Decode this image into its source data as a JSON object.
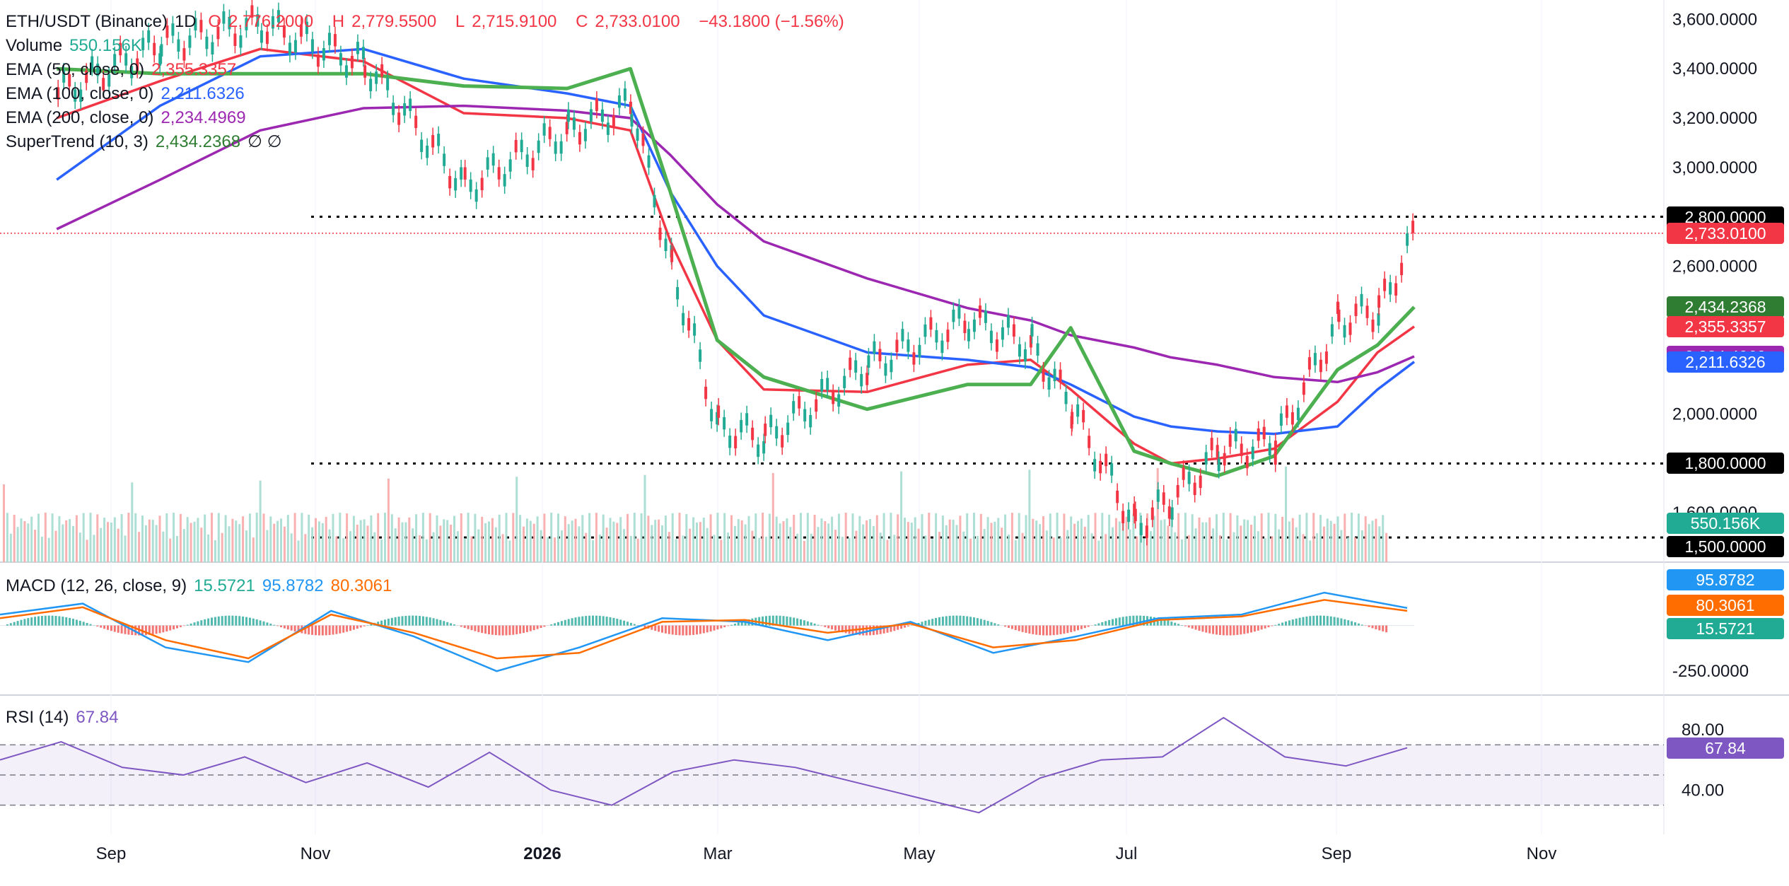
{
  "symbol": {
    "name": "ETH/USDT (Binance)",
    "interval": "1D",
    "o_label": "O",
    "o": "2,776.2000",
    "h_label": "H",
    "h": "2,779.5500",
    "l_label": "L",
    "l": "2,715.9100",
    "c_label": "C",
    "c": "2,733.0100",
    "change": "−43.1800 (−1.56%)"
  },
  "legend": {
    "volume": {
      "label": "Volume",
      "value": "550.156K",
      "color": "#22ab94"
    },
    "ema50": {
      "label": "EMA (50, close, 0)",
      "value": "2,355.3357",
      "color": "#f23645"
    },
    "ema100": {
      "label": "EMA (100, close, 0)",
      "value": "2,211.6326",
      "color": "#2962ff"
    },
    "ema200": {
      "label": "EMA (200, close, 0)",
      "value": "2,234.4969",
      "color": "#9c27b0"
    },
    "supertrend": {
      "label": "SuperTrend (10, 3)",
      "value": "2,434.2368",
      "up_color": "#4caf50",
      "down_color": "#9b5a50",
      "extra": "∅  ∅"
    },
    "macd": {
      "label": "MACD (12, 26, close, 9)",
      "hist": "15.5721",
      "macd": "95.8782",
      "signal": "80.3061"
    },
    "rsi": {
      "label": "RSI (14)",
      "value": "67.84",
      "color": "#7e57c2"
    }
  },
  "price_axis": [
    "3,600.0000",
    "3,400.0000",
    "3,200.0000",
    "3,000.0000",
    "2,600.0000",
    "2,000.0000",
    "1,600.0000"
  ],
  "price_labels": [
    {
      "text": "2,800.0000",
      "color": "#000000"
    },
    {
      "text": "2,733.0100",
      "color": "#f23645"
    },
    {
      "text": "2,434.2368",
      "color": "#2e7d32"
    },
    {
      "text": "2,355.3357",
      "color": "#f23645"
    },
    {
      "text": "2,234.4969",
      "color": "#9c27b0"
    },
    {
      "text": "2,211.6326",
      "color": "#2962ff"
    },
    {
      "text": "1,800.0000",
      "color": "#000000"
    },
    {
      "text": "550.156K",
      "color": "#22ab94"
    },
    {
      "text": "1,500.0000",
      "color": "#000000"
    }
  ],
  "macd_axis": [
    "-250.0000"
  ],
  "macd_labels": [
    {
      "text": "95.8782",
      "color": "#2196f3"
    },
    {
      "text": "80.3061",
      "color": "#ff6d00"
    },
    {
      "text": "15.5721",
      "color": "#22ab94"
    }
  ],
  "rsi_axis": [
    "80.00",
    "40.00"
  ],
  "rsi_label": {
    "text": "67.84",
    "color": "#7e57c2"
  },
  "time_axis": [
    "Sep",
    "Nov",
    "2026",
    "Mar",
    "May",
    "Jul",
    "Sep",
    "Nov"
  ],
  "chart_data": {
    "type": "line",
    "x": [
      "2025-08-01",
      "2025-09-01",
      "2025-10-01",
      "2025-11-01",
      "2025-12-01",
      "2026-01-01",
      "2026-01-20",
      "2026-02-01",
      "2026-02-15",
      "2026-03-01",
      "2026-04-01",
      "2026-05-01",
      "2026-05-20",
      "2026-06-01",
      "2026-06-20",
      "2026-07-01",
      "2026-07-15",
      "2026-08-01",
      "2026-08-20",
      "2026-09-01",
      "2026-09-12"
    ],
    "series": [
      {
        "name": "ETH/USDT",
        "values": [
          3300,
          3500,
          3580,
          3420,
          2920,
          3150,
          3250,
          2600,
          1950,
          1900,
          2200,
          2380,
          2280,
          2020,
          1550,
          1650,
          1850,
          1880,
          2380,
          2420,
          2733
        ]
      },
      {
        "name": "EMA (50, close, 0)",
        "values": [
          3200,
          3350,
          3480,
          3430,
          3220,
          3200,
          3150,
          2700,
          2300,
          2100,
          2090,
          2200,
          2220,
          2100,
          1880,
          1800,
          1820,
          1860,
          2050,
          2250,
          2355
        ]
      },
      {
        "name": "EMA (100, close, 0)",
        "values": [
          2950,
          3250,
          3450,
          3480,
          3360,
          3300,
          3250,
          2900,
          2600,
          2400,
          2250,
          2220,
          2190,
          2120,
          1990,
          1950,
          1930,
          1920,
          1950,
          2100,
          2212
        ]
      },
      {
        "name": "EMA (200, close, 0)",
        "values": [
          2750,
          2950,
          3150,
          3240,
          3250,
          3230,
          3200,
          3050,
          2850,
          2700,
          2550,
          2430,
          2380,
          2320,
          2270,
          2230,
          2200,
          2150,
          2130,
          2170,
          2234
        ]
      },
      {
        "name": "SuperTrend (10, 3)",
        "values": [
          3400,
          3380,
          3380,
          3380,
          3330,
          3320,
          3400,
          2900,
          2300,
          2150,
          2020,
          2120,
          2120,
          2350,
          1850,
          1800,
          1750,
          1830,
          2180,
          2280,
          2434
        ]
      }
    ],
    "ylim": [
      1400,
      3650
    ],
    "hlines": [
      2800,
      1800,
      1500
    ],
    "macd": {
      "ylim": [
        -350,
        250
      ],
      "macd": [
        60,
        120,
        -120,
        -200,
        80,
        -60,
        -250,
        -120,
        40,
        20,
        -80,
        20,
        -150,
        -60,
        40,
        60,
        180,
        96
      ],
      "signal": [
        40,
        100,
        -80,
        -180,
        60,
        -40,
        -180,
        -150,
        20,
        30,
        -40,
        10,
        -120,
        -80,
        30,
        50,
        140,
        80
      ]
    },
    "rsi": {
      "ylim": [
        20,
        95
      ],
      "levels": [
        70,
        50,
        30
      ],
      "values": [
        60,
        72,
        55,
        50,
        62,
        45,
        58,
        42,
        65,
        40,
        30,
        52,
        60,
        55,
        45,
        35,
        25,
        48,
        60,
        62,
        88,
        62,
        56,
        68
      ]
    }
  }
}
